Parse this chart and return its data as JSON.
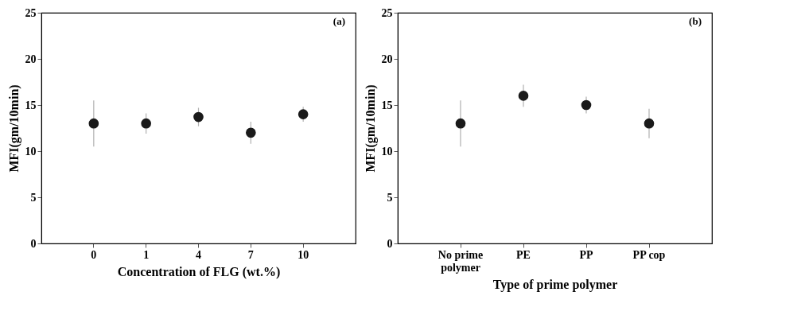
{
  "chart_data": [
    {
      "type": "scatter",
      "xlabel": "Concentration of FLG (wt.%)",
      "ylabel": "MFI(gm/10min)",
      "categories": [
        "0",
        "1",
        "4",
        "7",
        "10"
      ],
      "values": [
        13,
        13,
        13.7,
        12,
        14
      ],
      "errors": [
        2.5,
        1.1,
        1.0,
        1.2,
        0.8
      ],
      "color": "#1a1a1a",
      "marker": "circle",
      "ylim": [
        0,
        25
      ],
      "yticks": [
        0,
        5,
        10,
        15,
        20,
        25
      ],
      "grid": false,
      "annotations": [
        "(a)"
      ]
    },
    {
      "type": "scatter",
      "xlabel": "Type of prime polymer",
      "ylabel": "MFI(gm/10min)",
      "categories": [
        "No prime polymer",
        "PE",
        "PP",
        "PP cop"
      ],
      "values": [
        13,
        16,
        15,
        13
      ],
      "errors": [
        2.5,
        1.2,
        0.9,
        1.6
      ],
      "color": "#1a1a1a",
      "marker": "circle",
      "ylim": [
        0,
        25
      ],
      "yticks": [
        0,
        5,
        10,
        15,
        20,
        25
      ],
      "grid": false,
      "annotations": [
        "(b)"
      ]
    }
  ]
}
